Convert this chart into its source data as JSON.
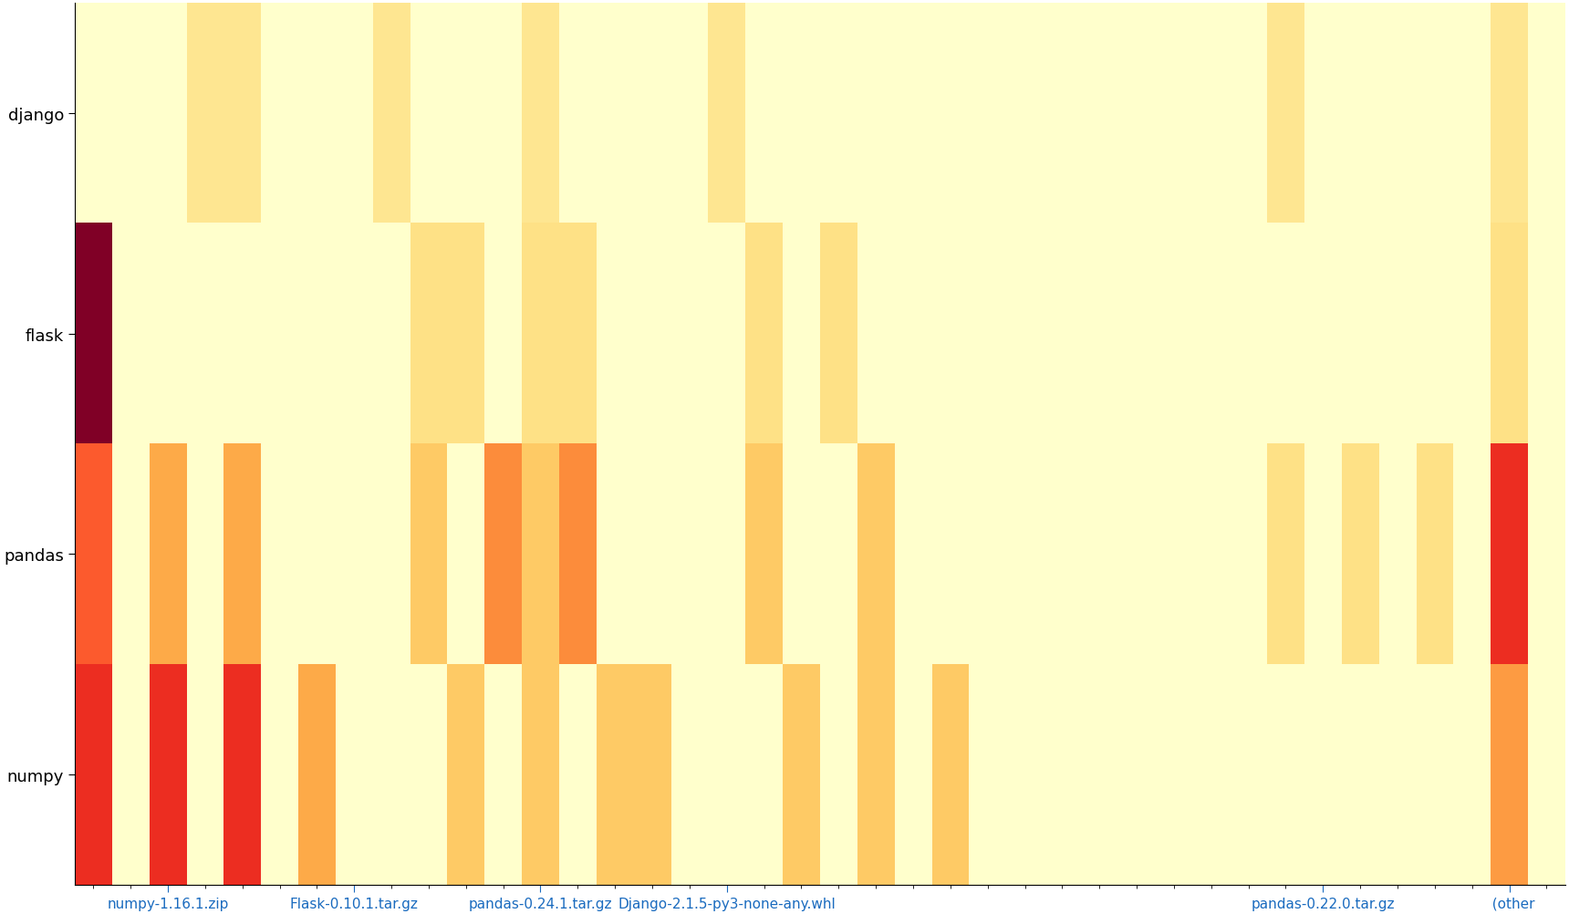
{
  "projects": [
    "django",
    "flask",
    "pandas",
    "numpy"
  ],
  "n_files": 40,
  "colormap": "YlOrRd",
  "figsize": [
    17.2,
    10.03
  ],
  "dpi": 100,
  "background_color": "#ffffff",
  "vmin": 0,
  "vmax": 1,
  "xlabel_ticks": {
    "numpy-1.16.1.zip": 2,
    "Flask-0.10.1.tar.gz": 7,
    "pandas-0.24.1.tar.gz": 12,
    "Django-2.1.5-py3-none-any.whl": 17,
    "pandas-0.22.0.tar.gz": 33,
    "  (other": 38
  },
  "matrix": [
    [
      0.0,
      0.0,
      0.0,
      0.17,
      0.17,
      0.0,
      0.0,
      0.0,
      0.17,
      0.0,
      0.0,
      0.0,
      0.17,
      0.0,
      0.0,
      0.0,
      0.0,
      0.17,
      0.0,
      0.0,
      0.0,
      0.0,
      0.0,
      0.0,
      0.0,
      0.0,
      0.0,
      0.0,
      0.0,
      0.0,
      0.0,
      0.0,
      0.17,
      0.0,
      0.0,
      0.0,
      0.0,
      0.0,
      0.17,
      0.0
    ],
    [
      1.0,
      0.0,
      0.0,
      0.0,
      0.0,
      0.0,
      0.0,
      0.0,
      0.0,
      0.2,
      0.2,
      0.0,
      0.2,
      0.2,
      0.0,
      0.0,
      0.0,
      0.0,
      0.2,
      0.0,
      0.2,
      0.0,
      0.0,
      0.0,
      0.0,
      0.0,
      0.0,
      0.0,
      0.0,
      0.0,
      0.0,
      0.0,
      0.0,
      0.0,
      0.0,
      0.0,
      0.0,
      0.0,
      0.2,
      0.0
    ],
    [
      0.6,
      0.0,
      0.4,
      0.0,
      0.4,
      0.0,
      0.0,
      0.0,
      0.0,
      0.3,
      0.0,
      0.5,
      0.3,
      0.5,
      0.0,
      0.0,
      0.0,
      0.0,
      0.3,
      0.0,
      0.0,
      0.3,
      0.0,
      0.0,
      0.0,
      0.0,
      0.0,
      0.0,
      0.0,
      0.0,
      0.0,
      0.0,
      0.2,
      0.0,
      0.2,
      0.0,
      0.2,
      0.0,
      0.7,
      0.0
    ],
    [
      0.7,
      0.0,
      0.7,
      0.0,
      0.7,
      0.0,
      0.4,
      0.0,
      0.0,
      0.0,
      0.3,
      0.0,
      0.3,
      0.0,
      0.3,
      0.3,
      0.0,
      0.0,
      0.0,
      0.3,
      0.0,
      0.3,
      0.0,
      0.3,
      0.0,
      0.0,
      0.0,
      0.0,
      0.0,
      0.0,
      0.0,
      0.0,
      0.0,
      0.0,
      0.0,
      0.0,
      0.0,
      0.0,
      0.45,
      0.0
    ]
  ]
}
